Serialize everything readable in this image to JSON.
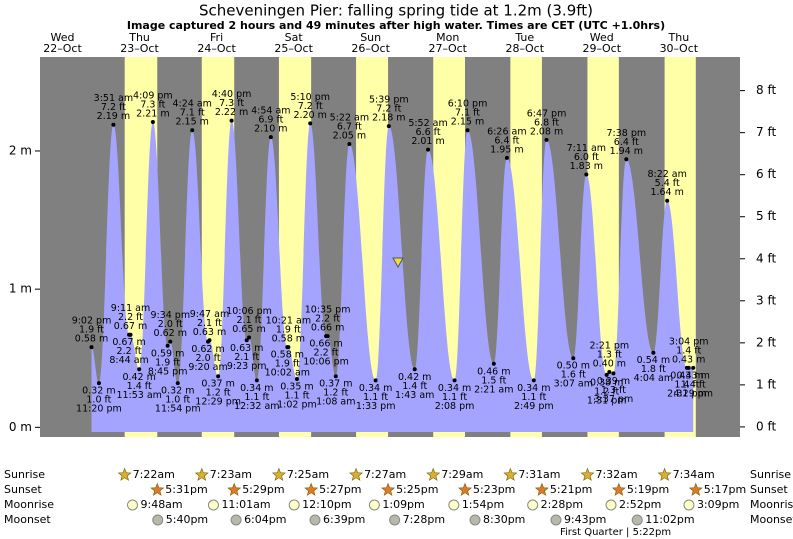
{
  "chart_data": {
    "type": "area",
    "title": "Scheveningen Pier: falling  spring tide at 1.2m (3.9ft)",
    "subtitle": "Image captured 2 hours and 49 minutes after high water. Times are CET (UTC +1.0hrs)",
    "ylim": [
      -0.07,
      2.68
    ],
    "yticks": [
      {
        "value": 0,
        "label": "0 m"
      },
      {
        "value": 1,
        "label": "1 m"
      },
      {
        "value": 2,
        "label": "2 m"
      }
    ],
    "y2lim": [
      -0.24,
      8.8
    ],
    "y2ticks": [
      {
        "value": 0,
        "label": "0 ft"
      },
      {
        "value": 1,
        "label": "1 ft"
      },
      {
        "value": 2,
        "label": "2 ft"
      },
      {
        "value": 3,
        "label": "3 ft"
      },
      {
        "value": 4,
        "label": "4 ft"
      },
      {
        "value": 5,
        "label": "5 ft"
      },
      {
        "value": 6,
        "label": "6 ft"
      },
      {
        "value": 7,
        "label": "7 ft"
      },
      {
        "value": 8,
        "label": "8 ft"
      }
    ],
    "colors": {
      "tide": "#a4a4ff",
      "night": "#808080",
      "day": "#ffffa8",
      "date": "#dd0000"
    },
    "row_labels": [
      "Sunrise",
      "Sunset",
      "Moonrise",
      "Moonset"
    ],
    "moon_phase": "First Quarter | 5:22pm",
    "days": [
      {
        "weekday": "Wed",
        "date": "22–Oct",
        "tides": [
          {
            "t": "9:02 pm",
            "ft": "1.9 ft",
            "m": 0.58,
            "ml": "0.58 m"
          },
          {
            "t": "11:20 pm",
            "ft": "1.0 ft",
            "m": 0.32,
            "ml": "0.32 m"
          }
        ]
      },
      {
        "weekday": "Thu",
        "date": "23–Oct",
        "sunrise": "7:22am",
        "sunset": "5:31pm",
        "moonrise": "9:48am",
        "moonset": "5:40pm",
        "tides": [
          {
            "t": "3:51 am",
            "ft": "7.2 ft",
            "m": 2.19,
            "ml": "2.19 m"
          },
          {
            "t": "8:44 am",
            "ft": "2.2 ft",
            "m": 0.67,
            "ml": "0.67 m"
          },
          {
            "t": "9:11 am",
            "ft": "2.2 ft",
            "m": 0.67,
            "ml": "0.67 m"
          },
          {
            "t": "11:53 am",
            "ft": "1.4 ft",
            "m": 0.42,
            "ml": "0.42 m"
          },
          {
            "t": "4:09 pm",
            "ft": "7.3 ft",
            "m": 2.21,
            "ml": "2.21 m"
          },
          {
            "t": "8:45 pm",
            "ft": "1.9 ft",
            "m": 0.59,
            "ml": "0.59 m"
          },
          {
            "t": "9:34 pm",
            "ft": "2.0 ft",
            "m": 0.62,
            "ml": "0.62 m"
          },
          {
            "t": "11:54 pm",
            "ft": "1.0 ft",
            "m": 0.32,
            "ml": "0.32 m"
          }
        ]
      },
      {
        "weekday": "Fri",
        "date": "24–Oct",
        "sunrise": "7:23am",
        "sunset": "5:29pm",
        "moonrise": "11:01am",
        "moonset": "6:04pm",
        "tides": [
          {
            "t": "4:24 am",
            "ft": "7.1 ft",
            "m": 2.15,
            "ml": "2.15 m"
          },
          {
            "t": "9:20 am",
            "ft": "2.0 ft",
            "m": 0.62,
            "ml": "0.62 m"
          },
          {
            "t": "9:47 am",
            "ft": "2.1 ft",
            "m": 0.63,
            "ml": "0.63 m"
          },
          {
            "t": "12:29 pm",
            "ft": "1.2 ft",
            "m": 0.37,
            "ml": "0.37 m"
          },
          {
            "t": "4:40 pm",
            "ft": "7.3 ft",
            "m": 2.22,
            "ml": "2.22 m"
          },
          {
            "t": "9:23 pm",
            "ft": "2.1 ft",
            "m": 0.63,
            "ml": "0.63 m"
          },
          {
            "t": "10:06 pm",
            "ft": "2.1 ft",
            "m": 0.65,
            "ml": "0.65 m"
          }
        ]
      },
      {
        "weekday": "Sat",
        "date": "25–Oct",
        "sunrise": "7:25am",
        "sunset": "5:27pm",
        "moonrise": "12:10pm",
        "moonset": "6:39pm",
        "tides": [
          {
            "t": "12:32 am",
            "ft": "1.1 ft",
            "m": 0.34,
            "ml": "0.34 m"
          },
          {
            "t": "4:54 am",
            "ft": "6.9 ft",
            "m": 2.1,
            "ml": "2.10 m"
          },
          {
            "t": "10:02 am",
            "ft": "1.9 ft",
            "m": 0.58,
            "ml": "0.58 m"
          },
          {
            "t": "10:21 am",
            "ft": "1.9 ft",
            "m": 0.58,
            "ml": "0.58 m"
          },
          {
            "t": "1:02 pm",
            "ft": "1.1 ft",
            "m": 0.35,
            "ml": "0.35 m"
          },
          {
            "t": "5:10 pm",
            "ft": "7.2 ft",
            "m": 2.2,
            "ml": "2.20 m"
          },
          {
            "t": "10:06 pm",
            "ft": "2.2 ft",
            "m": 0.66,
            "ml": "0.66 m"
          },
          {
            "t": "10:35 pm",
            "ft": "2.2 ft",
            "m": 0.66,
            "ml": "0.66 m"
          }
        ]
      },
      {
        "weekday": "Sun",
        "date": "26–Oct",
        "sunrise": "7:27am",
        "sunset": "5:25pm",
        "moonrise": "1:09pm",
        "moonset": "7:28pm",
        "tides": [
          {
            "t": "1:08 am",
            "ft": "1.2 ft",
            "m": 0.37,
            "ml": "0.37 m"
          },
          {
            "t": "5:22 am",
            "ft": "6.7 ft",
            "m": 2.05,
            "ml": "2.05 m"
          },
          {
            "t": "1:33 pm",
            "ft": "1.1 ft",
            "m": 0.34,
            "ml": "0.34 m"
          },
          {
            "t": "5:39 pm",
            "ft": "7.2 ft",
            "m": 2.18,
            "ml": "2.18 m"
          }
        ]
      },
      {
        "weekday": "Mon",
        "date": "27–Oct",
        "sunrise": "7:29am",
        "sunset": "5:23pm",
        "moonrise": "1:54pm",
        "moonset": "8:30pm",
        "tides": [
          {
            "t": "1:43 am",
            "ft": "1.4 ft",
            "m": 0.42,
            "ml": "0.42 m"
          },
          {
            "t": "5:52 am",
            "ft": "6.6 ft",
            "m": 2.01,
            "ml": "2.01 m"
          },
          {
            "t": "2:08 pm",
            "ft": "1.1 ft",
            "m": 0.34,
            "ml": "0.34 m"
          },
          {
            "t": "6:10 pm",
            "ft": "7.1 ft",
            "m": 2.15,
            "ml": "2.15 m"
          }
        ]
      },
      {
        "weekday": "Tue",
        "date": "28–Oct",
        "sunrise": "7:31am",
        "sunset": "5:21pm",
        "moonrise": "2:28pm",
        "moonset": "9:43pm",
        "tides": [
          {
            "t": "2:21 am",
            "ft": "1.5 ft",
            "m": 0.46,
            "ml": "0.46 m"
          },
          {
            "t": "6:26 am",
            "ft": "6.4 ft",
            "m": 1.95,
            "ml": "1.95 m"
          },
          {
            "t": "2:49 pm",
            "ft": "1.1 ft",
            "m": 0.34,
            "ml": "0.34 m"
          },
          {
            "t": "6:47 pm",
            "ft": "6.8 ft",
            "m": 2.08,
            "ml": "2.08 m"
          }
        ]
      },
      {
        "weekday": "Wed",
        "date": "29–Oct",
        "sunrise": "7:32am",
        "sunset": "5:19pm",
        "moonrise": "2:52pm",
        "moonset": "11:02pm",
        "tides": [
          {
            "t": "3:07 am",
            "ft": "1.6 ft",
            "m": 0.5,
            "ml": "0.50 m"
          },
          {
            "t": "7:11 am",
            "ft": "6.0 ft",
            "m": 1.83,
            "ml": "1.83 m"
          },
          {
            "t": "1:31 pm",
            "ft": "1.2 ft",
            "m": 0.38,
            "ml": "0.38 m"
          },
          {
            "t": "2:21 pm",
            "ft": "1.3 ft",
            "m": 0.4,
            "ml": "0.40 m"
          },
          {
            "t": "3:37 pm",
            "ft": "1.3 ft",
            "m": 0.39,
            "ml": "0.39 m"
          },
          {
            "t": "7:38 pm",
            "ft": "6.4 ft",
            "m": 1.94,
            "ml": "1.94 m"
          }
        ]
      },
      {
        "weekday": "Thu",
        "date": "30–Oct",
        "sunrise": "7:34am",
        "sunset": "5:17pm",
        "moonrise": "3:09pm",
        "tides": [
          {
            "t": "4:04 am",
            "ft": "1.8 ft",
            "m": 0.54,
            "ml": "0.54 m"
          },
          {
            "t": "8:22 am",
            "ft": "5.4 ft",
            "m": 1.64,
            "ml": "1.64 m"
          },
          {
            "t": "2:31 pm",
            "ft": "1.4 ft",
            "m": 0.43,
            "ml": "0.43 m"
          },
          {
            "t": "3:04 pm",
            "ft": "1.4 ft",
            "m": 0.43,
            "ml": "0.43 m"
          },
          {
            "t": "4:29 pm",
            "ft": "1.4 ft",
            "m": 0.43,
            "ml": "0.43 m"
          }
        ]
      }
    ]
  }
}
